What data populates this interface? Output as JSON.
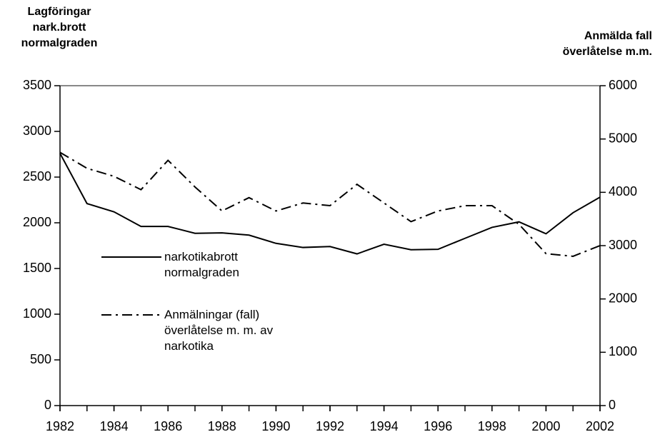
{
  "chart_data": {
    "type": "line",
    "y_label": "Lagföringar nark.brott normalgraden",
    "y2_label": "Anmälda fall överlåtelse m.m.",
    "x": [
      1982,
      1983,
      1984,
      1985,
      1986,
      1987,
      1988,
      1989,
      1990,
      1991,
      1992,
      1993,
      1994,
      1995,
      1996,
      1997,
      1998,
      1999,
      2000,
      2001,
      2002
    ],
    "xlim": [
      1982,
      2002
    ],
    "xticks": [
      1982,
      1984,
      1986,
      1988,
      1990,
      1992,
      1994,
      1996,
      1998,
      2000,
      2002
    ],
    "ylim": [
      0,
      3500
    ],
    "yticks": [
      0,
      500,
      1000,
      1500,
      2000,
      2500,
      3000,
      3500
    ],
    "y2lim": [
      0,
      6000
    ],
    "y2ticks": [
      0,
      1000,
      2000,
      3000,
      4000,
      5000,
      6000
    ],
    "series": [
      {
        "name": "narkotikabrott normalgraden",
        "color": "#000000",
        "dash": "solid",
        "values": [
          2760,
          2210,
          2120,
          1960,
          1960,
          1885,
          1890,
          1865,
          1775,
          1730,
          1740,
          1660,
          1765,
          1705,
          1710,
          1830,
          1950,
          2010,
          1880,
          2110,
          2280
        ]
      },
      {
        "name": "Anmälningar (fall) överlåtelse m. m. av narkotika",
        "color": "#000000",
        "dash": "dashdot",
        "axis": "y2",
        "values": [
          4750,
          4450,
          4300,
          4050,
          4600,
          4100,
          3650,
          3900,
          3650,
          3800,
          3750,
          4150,
          3800,
          3450,
          3650,
          3750,
          3750,
          3400,
          2850,
          2800,
          3000
        ]
      }
    ]
  }
}
